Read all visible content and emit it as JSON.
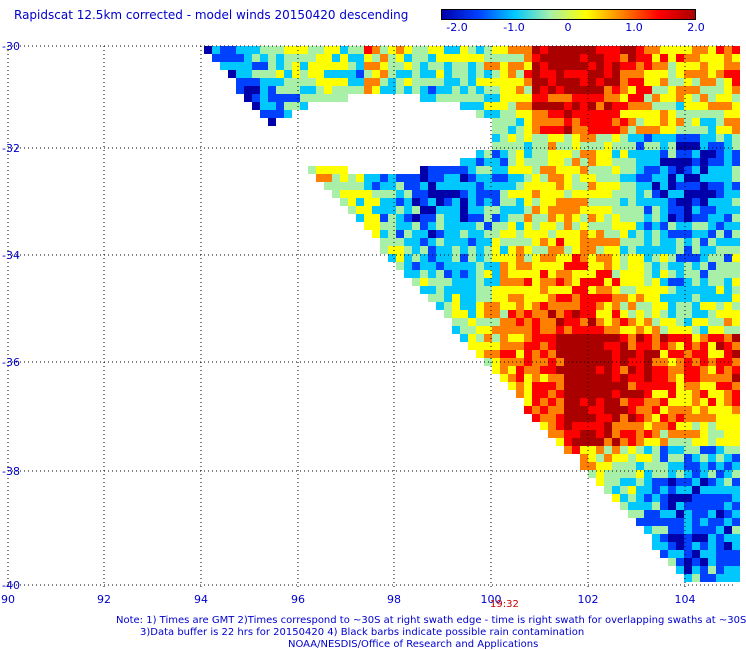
{
  "title": "Rapidscat 12.5km corrected - model winds 20150420 descending",
  "colorbar": {
    "ticks": [
      "-2.0",
      "-1.0",
      "0",
      "1.0",
      "2.0"
    ],
    "range": [
      -2.0,
      2.0
    ],
    "colors": [
      "#0000aa",
      "#0040ff",
      "#00c8ff",
      "#a8f0a8",
      "#ffff00",
      "#ff8000",
      "#ff0000",
      "#aa0000"
    ]
  },
  "map": {
    "lat_labels": [
      "-30",
      "-32",
      "-34",
      "-36",
      "-38",
      "-40"
    ],
    "lon_labels": [
      "90",
      "92",
      "94",
      "96",
      "98",
      "100",
      "102",
      "104"
    ],
    "lat_range": [
      -40,
      -30
    ],
    "lon_range": [
      90,
      105
    ],
    "swath_time": "19:32",
    "grid_style": "dotted"
  },
  "notes": {
    "line1": "Note: 1) Times are GMT 2)Times correspond to ~30S at right swath edge - time is right swath for overlapping swaths at ~30S",
    "line2": "3)Data buffer is 22 hrs for 20150420 4) Black barbs indicate possible rain contamination",
    "line3": "NOAA/NESDIS/Office of Research and Applications"
  }
}
